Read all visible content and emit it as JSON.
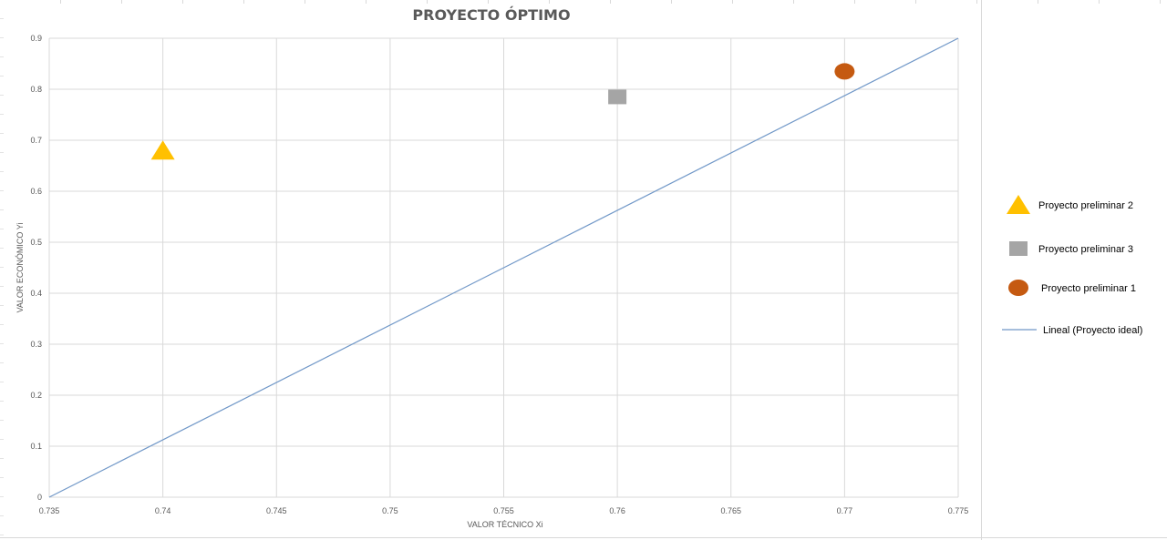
{
  "chart_data": {
    "type": "scatter",
    "title": "PROYECTO ÓPTIMO",
    "xlabel": "VALOR TÉCNICO Xi",
    "ylabel": "VALOR ECONÓMICO Yi",
    "xlim": [
      0.735,
      0.775
    ],
    "ylim": [
      0,
      0.9
    ],
    "x_ticks": [
      "0.735",
      "0.74",
      "0.745",
      "0.75",
      "0.755",
      "0.76",
      "0.765",
      "0.77",
      "0.775"
    ],
    "y_ticks": [
      "0",
      "0.1",
      "0.2",
      "0.3",
      "0.4",
      "0.5",
      "0.6",
      "0.7",
      "0.8",
      "0.9"
    ],
    "grid": true,
    "legend_position": "right",
    "series": [
      {
        "name": "Proyecto preliminar 2",
        "marker": "triangle",
        "color": "#ffc000",
        "points": [
          [
            0.74,
            0.68
          ]
        ]
      },
      {
        "name": "Proyecto preliminar 3",
        "marker": "square",
        "color": "#a5a5a5",
        "points": [
          [
            0.76,
            0.785
          ]
        ]
      },
      {
        "name": "Proyecto preliminar 1",
        "marker": "circle",
        "color": "#c55a11",
        "points": [
          [
            0.77,
            0.835
          ]
        ]
      }
    ],
    "trendline": {
      "name": "Lineal (Proyecto ideal)",
      "color": "#7198c8",
      "points": [
        [
          0.735,
          0
        ],
        [
          0.775,
          0.9
        ]
      ]
    }
  }
}
